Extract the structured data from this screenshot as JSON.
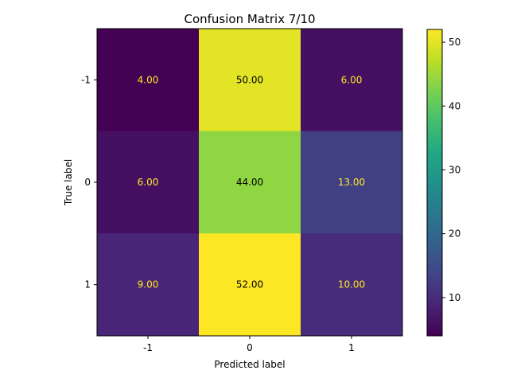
{
  "chart_data": {
    "type": "heatmap",
    "title": "Confusion Matrix 7/10",
    "xlabel": "Predicted label",
    "ylabel": "True label",
    "x_categories": [
      "-1",
      "0",
      "1"
    ],
    "y_categories": [
      "-1",
      "0",
      "1"
    ],
    "values": [
      [
        4,
        50,
        6
      ],
      [
        6,
        44,
        13
      ],
      [
        9,
        52,
        10
      ]
    ],
    "cell_labels": [
      [
        "4.00",
        "50.00",
        "6.00"
      ],
      [
        "6.00",
        "44.00",
        "13.00"
      ],
      [
        "9.00",
        "52.00",
        "10.00"
      ]
    ],
    "colormap": "viridis",
    "color_range": [
      4,
      52
    ],
    "colorbar_ticks": [
      10,
      20,
      30,
      40,
      50
    ],
    "colorbar_tick_labels": [
      "10",
      "20",
      "30",
      "40",
      "50"
    ]
  },
  "colors": {
    "low_text": "#fde725",
    "high_text": "#000000"
  }
}
